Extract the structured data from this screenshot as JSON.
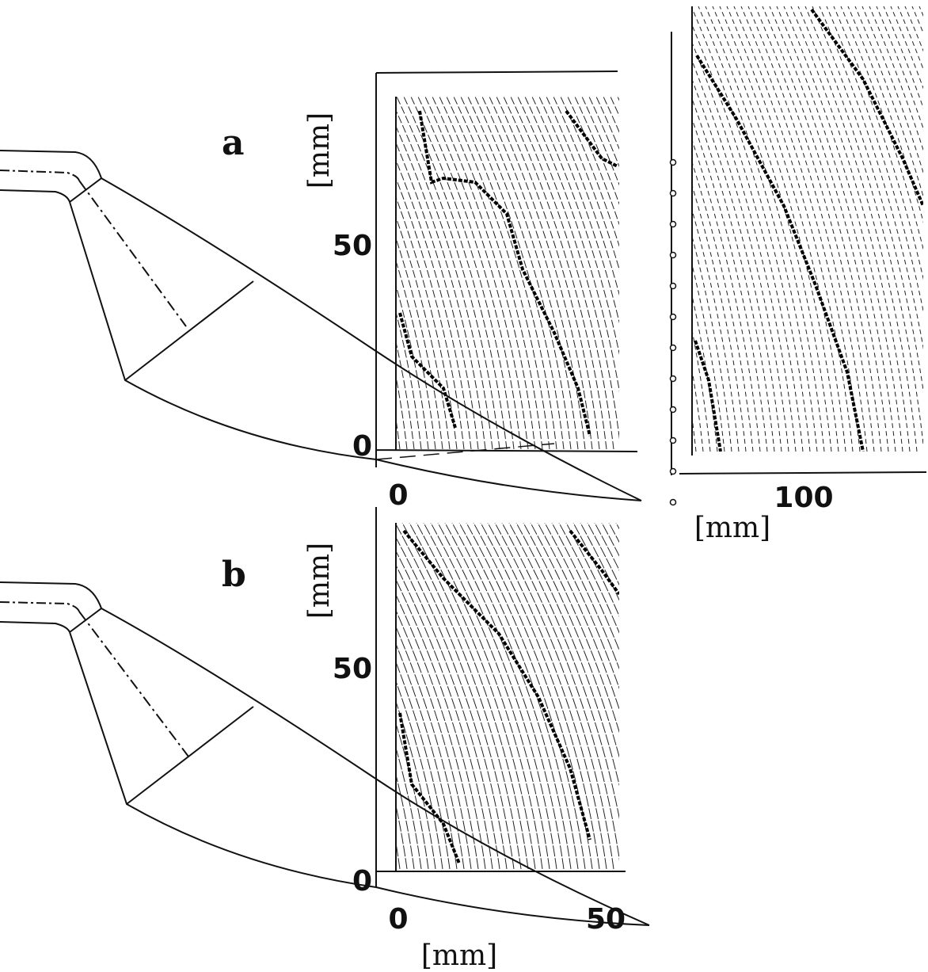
{
  "panels": [
    {
      "label": "a",
      "y_axis_label": "[mm]",
      "y_tick_labels": [
        "50",
        "0"
      ],
      "x_tick_labels": [
        "0",
        "100"
      ],
      "x_axis_label": "[mm]"
    },
    {
      "label": "b",
      "y_axis_label": "[mm]",
      "y_tick_labels": [
        "50",
        "0"
      ],
      "x_tick_labels": [
        "0",
        "50"
      ],
      "x_axis_label": "[mm]"
    }
  ]
}
